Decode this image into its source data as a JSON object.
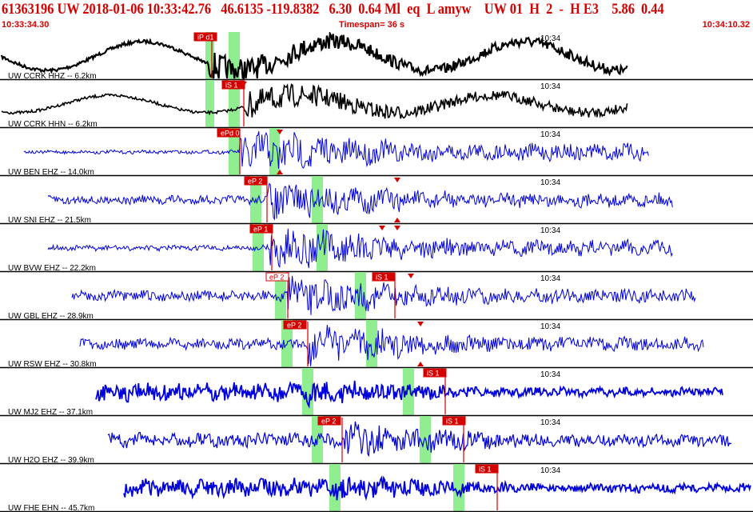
{
  "header": {
    "main": "61363196 UW 2018-01-06 10:33:42.76   46.6135 -119.8382   6.30  0.64 Ml  eq  L amyw    UW 01  H  2  -  H E3    5.86  0.44",
    "start_time": "10:33:34.30",
    "timespan": "Timespan=  36 s",
    "end_time": "10:34:10.32"
  },
  "colors": {
    "header_text": "#d40000",
    "trace_black": "#000000",
    "trace_blue": "#0000dd",
    "pick_red": "#d40000",
    "pick_green": "#90ee90",
    "separator": "#000000"
  },
  "channels": [
    {
      "label": "UW CCRK HHZ -- 6.2km",
      "minute": "10:34",
      "color": "black",
      "picks": [
        {
          "text": "iP d1",
          "style": "filled"
        }
      ],
      "arrivals": []
    },
    {
      "label": "UW CCRK HHN -- 6.2km",
      "minute": "10:34",
      "color": "black",
      "picks": [
        {
          "text": "iS 1",
          "style": "filled"
        }
      ],
      "arrivals": []
    },
    {
      "label": "UW BEN EHZ -- 14.0km",
      "minute": "10:34",
      "color": "blue",
      "picks": [
        {
          "text": "ePd 0",
          "style": "filled"
        }
      ],
      "arrivals": []
    },
    {
      "label": "UW SNI EHZ -- 21.5km",
      "minute": "10:34",
      "color": "blue",
      "picks": [
        {
          "text": "eP 2",
          "style": "filled"
        }
      ],
      "arrivals": []
    },
    {
      "label": "UW BVW EHZ -- 22.2km",
      "minute": "10:34",
      "color": "blue",
      "picks": [
        {
          "text": "eP 1",
          "style": "filled"
        }
      ],
      "arrivals": []
    },
    {
      "label": "UW GBL EHZ -- 28.9km",
      "minute": "10:34",
      "color": "blue",
      "picks": [
        {
          "text": "eP 2",
          "style": "outline"
        },
        {
          "text": "iS 1",
          "style": "filled"
        }
      ],
      "arrivals": []
    },
    {
      "label": "UW RSW EHZ -- 30.8km",
      "minute": "10:34",
      "color": "blue",
      "picks": [
        {
          "text": "eP 2",
          "style": "filled"
        }
      ],
      "arrivals": []
    },
    {
      "label": "UW MJ2 EHZ -- 37.1km",
      "minute": "10:34",
      "color": "blue",
      "picks": [
        {
          "text": "iS 1",
          "style": "filled"
        }
      ],
      "arrivals": []
    },
    {
      "label": "UW H2O EHZ -- 39.9km",
      "minute": "10:34",
      "color": "blue",
      "picks": [
        {
          "text": "eP 2",
          "style": "filled"
        },
        {
          "text": "iS 1",
          "style": "filled"
        }
      ],
      "arrivals": []
    },
    {
      "label": "UW FHE EHN -- 45.7km",
      "minute": "10:34",
      "color": "blue",
      "picks": [
        {
          "text": "iS 1",
          "style": "filled"
        }
      ],
      "arrivals": []
    }
  ]
}
